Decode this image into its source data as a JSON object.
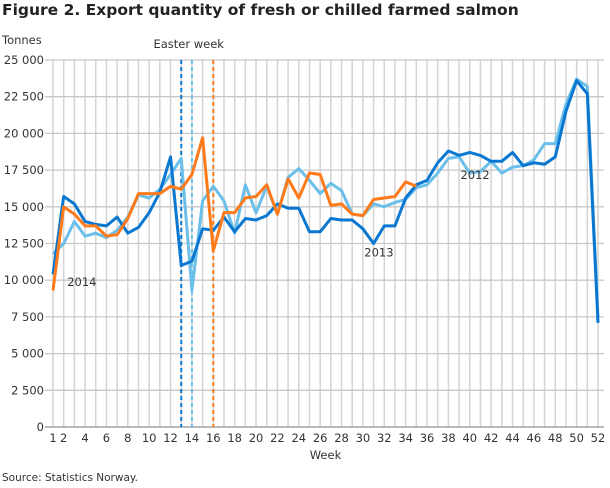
{
  "title": "Figure 2. Export quantity of fresh or chilled farmed salmon",
  "source": "Source: Statistics Norway.",
  "chart_data": {
    "type": "line",
    "title": "Figure 2. Export quantity of fresh or chilled farmed salmon",
    "xlabel": "Week",
    "ylabel": "Tonnes",
    "xlim": [
      1,
      52
    ],
    "ylim": [
      0,
      25000
    ],
    "grid": true,
    "x_ticks": [
      1,
      2,
      4,
      6,
      8,
      10,
      12,
      14,
      16,
      18,
      20,
      22,
      24,
      26,
      28,
      30,
      32,
      34,
      36,
      38,
      40,
      42,
      44,
      46,
      48,
      50,
      52
    ],
    "y_ticks": [
      0,
      2500,
      5000,
      7500,
      10000,
      12500,
      15000,
      17500,
      20000,
      22500,
      25000
    ],
    "y_tick_labels": [
      "0",
      "2 500",
      "5 000",
      "7 500",
      "10 000",
      "12 500",
      "15 000",
      "17 500",
      "20 000",
      "22 500",
      "25 000"
    ],
    "annotations": [
      {
        "text": "Easter week",
        "markers": [
          {
            "week": 13,
            "color": "#0a78d0"
          },
          {
            "week": 14,
            "color": "#6bbfeb"
          },
          {
            "week": 16,
            "color": "#ff7a1a"
          }
        ]
      }
    ],
    "series": [
      {
        "name": "2012",
        "color": "#6bbfeb",
        "label_week": 40.5,
        "label_value": 16900,
        "values": [
          11800,
          12500,
          14000,
          13000,
          13200,
          12900,
          13400,
          14300,
          15800,
          15600,
          16200,
          17200,
          18300,
          9300,
          15400,
          16400,
          15400,
          13200,
          16500,
          14600,
          16400,
          14500,
          17000,
          17600,
          16800,
          15900,
          16600,
          16100,
          14500,
          14400,
          15200,
          15000,
          15300,
          15500,
          16300,
          16500,
          17300,
          18300,
          18400,
          17300,
          17400,
          18100,
          17300,
          17700,
          17800,
          18200,
          19300,
          19300,
          22000,
          23700,
          23200,
          7500
        ]
      },
      {
        "name": "2013",
        "color": "#0a78d0",
        "label_week": 31.5,
        "label_value": 11600,
        "values": [
          10400,
          15700,
          15200,
          14000,
          13800,
          13700,
          14300,
          13200,
          13600,
          14600,
          16000,
          18400,
          11000,
          11300,
          13500,
          13400,
          14300,
          13300,
          14200,
          14100,
          14400,
          15200,
          14900,
          14900,
          13300,
          13300,
          14200,
          14100,
          14100,
          13500,
          12500,
          13700,
          13700,
          15600,
          16500,
          16800,
          18000,
          18800,
          18500,
          18700,
          18500,
          18100,
          18100,
          18700,
          17800,
          18000,
          17900,
          18400,
          21500,
          23600,
          22700,
          7100
        ]
      },
      {
        "name": "2014",
        "color": "#ff7a1a",
        "label_week": 3.7,
        "label_value": 9600,
        "values": [
          9300,
          15000,
          14500,
          13700,
          13700,
          13000,
          13100,
          14200,
          15900,
          15900,
          15900,
          16400,
          16200,
          17200,
          19700,
          12000,
          14600,
          14600,
          15600,
          15700,
          16500,
          14500,
          16900,
          15600,
          17300,
          17200,
          15100,
          15200,
          14500,
          14400,
          15500,
          15600,
          15700,
          16700,
          16400
        ]
      }
    ]
  }
}
